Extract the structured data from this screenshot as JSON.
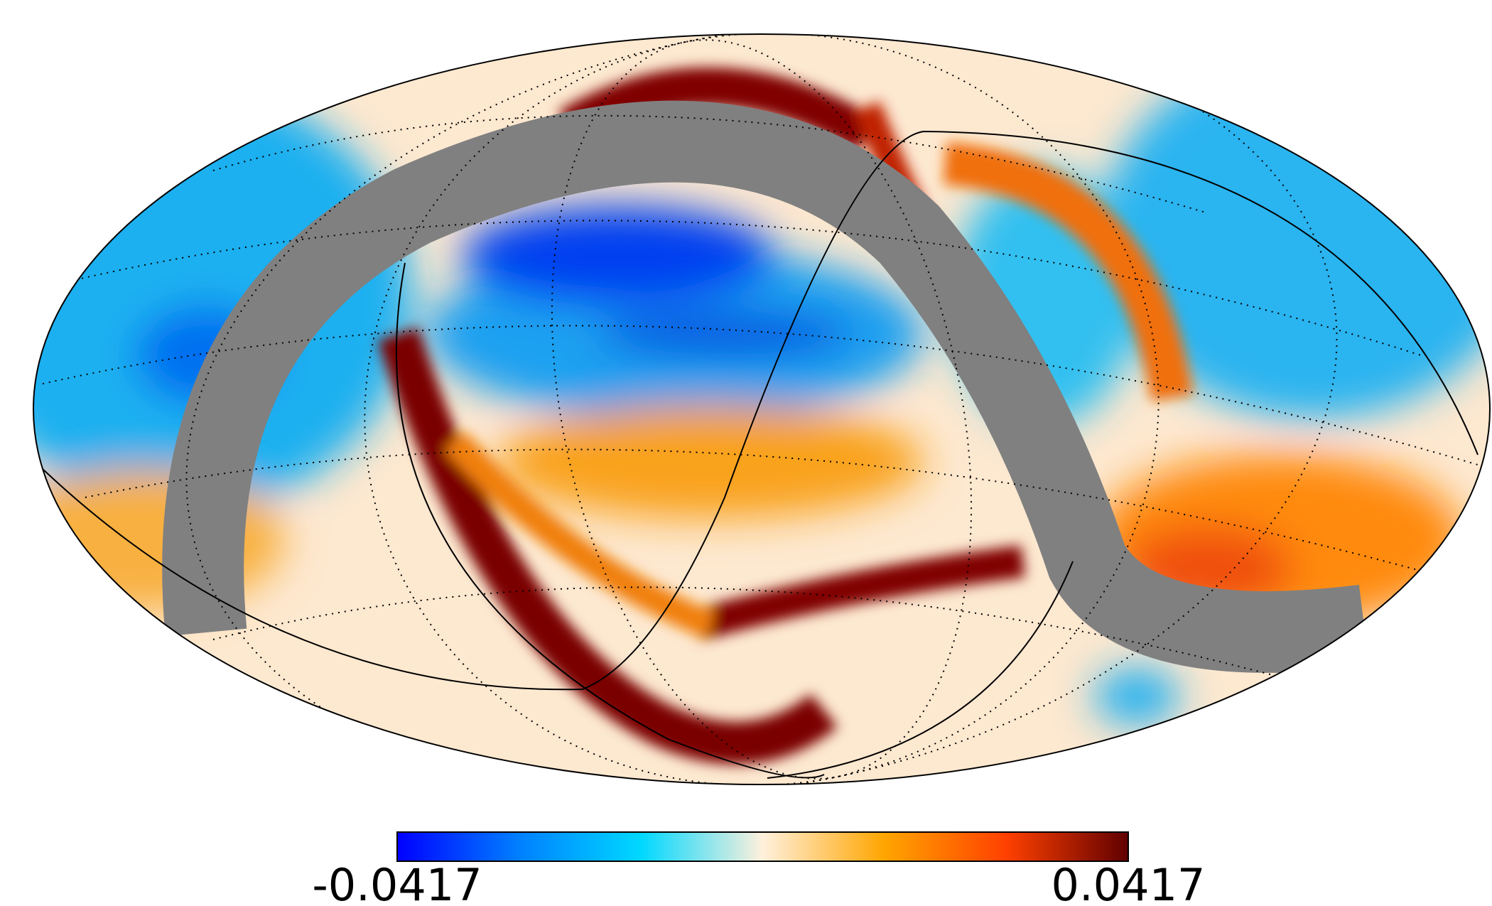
{
  "colorbar": {
    "min": -0.0417,
    "max": 0.0417,
    "colormap": [
      "#0000ff",
      "#0080ff",
      "#00d8ff",
      "#fff0dc",
      "#ffa500",
      "#ff4000",
      "#600000"
    ]
  }
}
